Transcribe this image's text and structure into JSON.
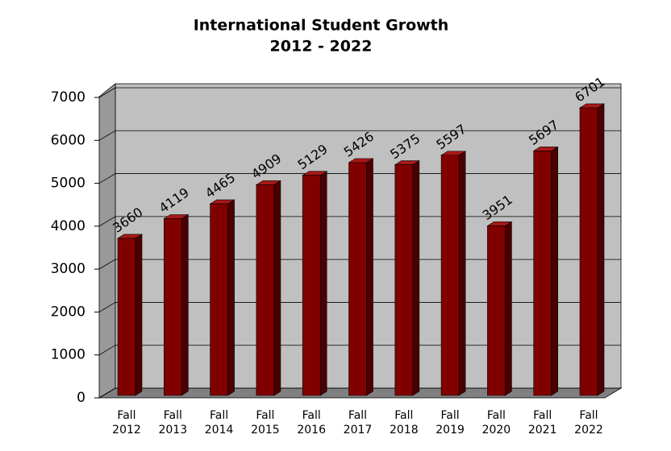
{
  "chart_data": {
    "type": "bar3d",
    "title": "International Student Growth",
    "subtitle": "2012 - 2022",
    "categories": [
      "Fall 2012",
      "Fall 2013",
      "Fall 2014",
      "Fall 2015",
      "Fall 2016",
      "Fall 2017",
      "Fall 2018",
      "Fall 2019",
      "Fall 2020",
      "Fall 2021",
      "Fall 2022"
    ],
    "values": [
      3660,
      4119,
      4465,
      4909,
      5129,
      5426,
      5375,
      5597,
      3951,
      5697,
      6701
    ],
    "color": "#800000",
    "ylim": [
      0,
      7000
    ],
    "yticks": [
      0,
      1000,
      2000,
      3000,
      4000,
      5000,
      6000,
      7000
    ],
    "grid": true
  }
}
